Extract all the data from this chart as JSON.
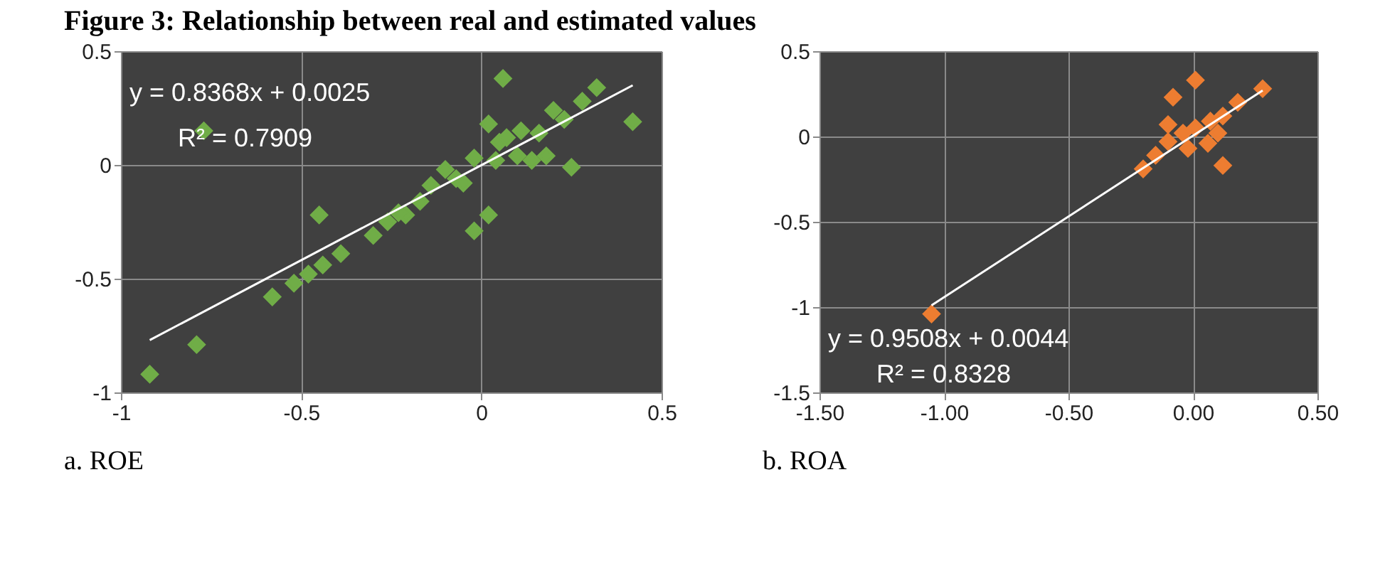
{
  "chart_data": [
    {
      "type": "scatter",
      "title": "Figure 3: Relationship between real and estimated values",
      "grid": true,
      "xlim": [
        -1,
        0.5
      ],
      "ylim": [
        -1,
        0.5
      ],
      "xticks": [
        -1,
        -0.5,
        0,
        0.5
      ],
      "yticks": [
        -1,
        -0.5,
        0,
        0.5
      ],
      "annotations": [
        "y = 0.8368x + 0.0025",
        "R² = 0.7909",
        "a. ROE"
      ],
      "series": [
        {
          "marker": "diamond",
          "color": "#70ad47",
          "x": [
            -0.92,
            -0.79,
            -0.58,
            -0.52,
            -0.48,
            -0.44,
            -0.39,
            -0.45,
            -0.77,
            -0.3,
            -0.26,
            -0.21,
            -0.17,
            -0.14,
            -0.1,
            -0.07,
            -0.02,
            0.02,
            -0.02,
            0.02,
            0.06,
            0.05,
            0.1,
            0.14,
            0.18,
            0.16,
            0.23,
            0.28,
            0.32,
            0.25,
            0.42,
            0.07,
            0.11,
            0.2,
            0.04,
            -0.05,
            -0.23
          ],
          "values": [
            -0.92,
            -0.79,
            -0.58,
            -0.52,
            -0.48,
            -0.44,
            -0.39,
            -0.22,
            0.15,
            -0.31,
            -0.25,
            -0.22,
            -0.16,
            -0.09,
            -0.02,
            -0.06,
            -0.29,
            -0.22,
            0.03,
            0.18,
            0.38,
            0.1,
            0.04,
            0.02,
            0.04,
            0.14,
            0.2,
            0.28,
            0.34,
            -0.01,
            0.19,
            0.12,
            0.15,
            0.24,
            0.02,
            -0.08,
            -0.21
          ]
        },
        {
          "type": "line",
          "marker": "none",
          "line_style": "solid",
          "color": "#ffffff",
          "x": [
            -0.92,
            0.42
          ],
          "values": [
            -0.77,
            0.35
          ]
        }
      ]
    },
    {
      "type": "scatter",
      "grid": true,
      "xlim": [
        -1.5,
        0.5
      ],
      "ylim": [
        -1.5,
        0.5
      ],
      "xticks": [
        {
          "value": -1.5,
          "label": "-1.50"
        },
        {
          "value": -1,
          "label": "-1.00"
        },
        {
          "value": -0.5,
          "label": "-0.50"
        },
        {
          "value": 0,
          "label": "0.00"
        },
        {
          "value": 0.5,
          "label": "0.50"
        }
      ],
      "yticks": [
        -1.5,
        -1,
        -0.5,
        0,
        0.5
      ],
      "annotations": [
        "y = 0.9508x + 0.0044",
        "R² = 0.8328",
        "b. ROA"
      ],
      "series": [
        {
          "marker": "diamond",
          "color": "#ed7d31",
          "x": [
            -1.05,
            0.28,
            0.01,
            -0.08,
            0.12,
            -0.2,
            -0.15,
            -0.1,
            -0.04,
            0.01,
            0.07,
            0.12,
            0.18,
            0.06,
            -0.1,
            -0.02,
            0.1
          ],
          "values": [
            -1.04,
            0.28,
            0.33,
            0.23,
            -0.17,
            -0.19,
            -0.11,
            -0.03,
            0.02,
            0.05,
            0.09,
            0.12,
            0.2,
            -0.04,
            0.07,
            -0.07,
            0.02
          ]
        },
        {
          "type": "line",
          "marker": "none",
          "line_style": "solid",
          "color": "#ffffff",
          "x": [
            -1.05,
            0.28
          ],
          "values": [
            -0.99,
            0.27
          ]
        }
      ]
    }
  ]
}
